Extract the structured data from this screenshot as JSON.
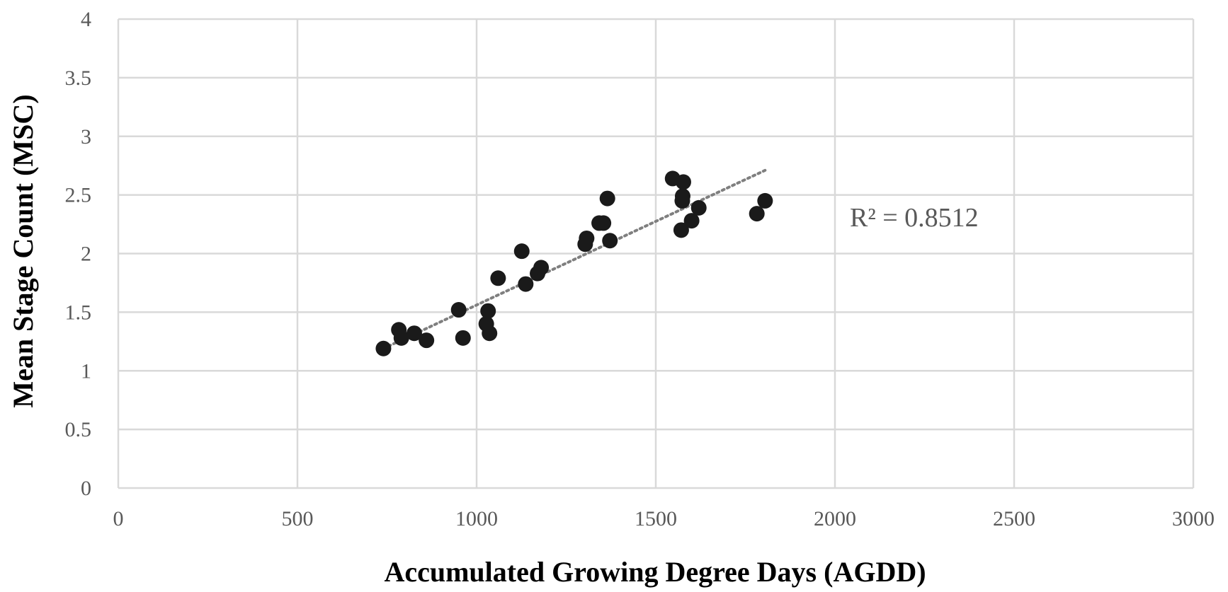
{
  "chart_data": {
    "type": "scatter",
    "title": "",
    "xlabel": "Accumulated Growing Degree Days (AGDD)",
    "ylabel": "Mean Stage Count (MSC)",
    "xlim": [
      0,
      3000
    ],
    "ylim": [
      0,
      4
    ],
    "x_ticks": [
      "0",
      "500",
      "1000",
      "1500",
      "2000",
      "2500",
      "3000"
    ],
    "y_ticks": [
      "0",
      "0.5",
      "1",
      "1.5",
      "2",
      "2.5",
      "3",
      "3.5",
      "4"
    ],
    "grid": true,
    "legend": "none",
    "colors": {
      "points": "#1a1a1a",
      "trendline": "#7f7f7f",
      "grid": "#d9d9d9",
      "text": "#595959"
    },
    "series": [
      {
        "x": [
          740,
          783,
          790,
          826,
          860,
          950,
          962,
          1027,
          1032,
          1036,
          1060,
          1126,
          1137,
          1170,
          1180,
          1303,
          1307,
          1342,
          1354,
          1365,
          1372,
          1547,
          1571,
          1574,
          1577,
          1575,
          1600,
          1620,
          1782,
          1805
        ],
        "y": [
          1.19,
          1.35,
          1.28,
          1.32,
          1.26,
          1.52,
          1.28,
          1.4,
          1.51,
          1.32,
          1.79,
          2.02,
          1.74,
          1.83,
          1.88,
          2.08,
          2.13,
          2.26,
          2.26,
          2.47,
          2.11,
          2.64,
          2.2,
          2.45,
          2.61,
          2.49,
          2.28,
          2.39,
          2.34,
          2.45
        ]
      }
    ],
    "trendline": {
      "type": "linear",
      "style": "dotted",
      "x_range": [
        740,
        1805
      ],
      "y_range": [
        1.19,
        2.71
      ],
      "r_squared_label": "R² = 0.8512"
    }
  }
}
